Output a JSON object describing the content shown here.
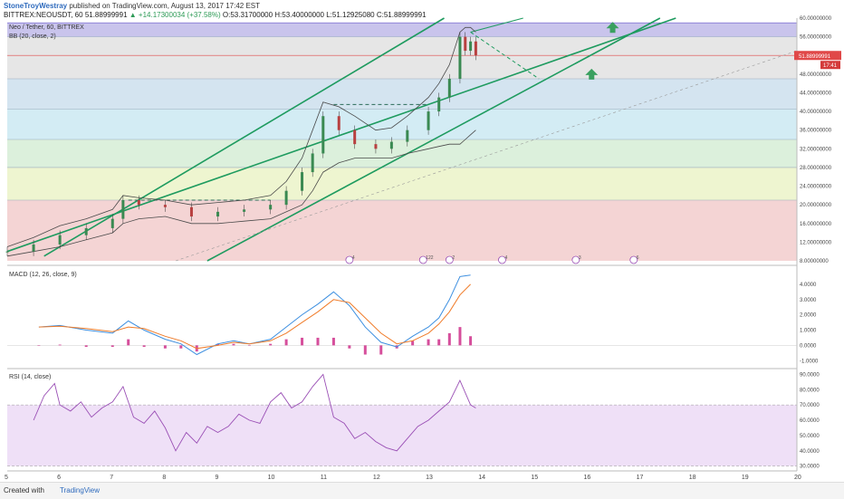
{
  "header": {
    "author": "StoneTroyWestray",
    "published": "published on TradingView.com, August 13, 2017 17:42 EST",
    "symbol": "BITTREX:NEOUSDT, 60",
    "last": "51.88999991",
    "change": "▲ +14.17300034 (+37.58%)",
    "ohlc": "O:53.31700000 H:53.40000000 L:51.12925080 C:51.88999991"
  },
  "footer": {
    "created": "Created with",
    "brand": "TradingView"
  },
  "colors": {
    "channel": "#1e9b5f",
    "bb": "#4a4a4a",
    "macd": "#3d8fe0",
    "signal": "#f07c2a",
    "hist": "#d64f9c",
    "rsi": "#9a4fb5",
    "arrow": "#3aa05f",
    "price_badge": "#e04848"
  },
  "chart_data": [
    {
      "type": "line",
      "title": "Neo / Tether, 60, BITTREX",
      "indicator": "BB (20, close, 2)",
      "x_tick_labels": [
        "5",
        "6",
        "7",
        "8",
        "9",
        "10",
        "11",
        "12",
        "13",
        "14",
        "15",
        "16",
        "17",
        "18",
        "19",
        "20"
      ],
      "y_tick_labels": [
        "60.00000000",
        "56.00000000",
        "52.00000000",
        "48.00000000",
        "44.00000000",
        "40.00000000",
        "36.00000000",
        "32.00000000",
        "28.00000000",
        "24.00000000",
        "20.00000000",
        "16.00000000",
        "12.00000000",
        "8.00000000"
      ],
      "ylim": [
        8,
        60
      ],
      "price_label": "51.88999991",
      "time_label": "17:41",
      "x": [
        5,
        5.5,
        6,
        6.5,
        7,
        7.2,
        7.5,
        8,
        8.5,
        9,
        9.5,
        10,
        10.3,
        10.6,
        10.8,
        11,
        11.3,
        11.6,
        12,
        12.3,
        12.6,
        13,
        13.2,
        13.4,
        13.6,
        13.7,
        13.8,
        13.9
      ],
      "close": [
        10,
        11.5,
        13.5,
        15,
        17,
        21,
        20,
        19.5,
        17.5,
        18.5,
        19,
        20,
        23,
        27,
        31,
        39,
        36,
        33,
        32,
        33.5,
        36,
        40,
        43,
        47,
        56,
        53,
        55,
        52
      ],
      "bb_upper": [
        11,
        13,
        15.5,
        17,
        19,
        22,
        21.5,
        21,
        20,
        20.5,
        21,
        22,
        25,
        30,
        36,
        42,
        41,
        39,
        36,
        36.5,
        39,
        43,
        46,
        50,
        57,
        58,
        58,
        57
      ],
      "bb_lower": [
        9,
        10,
        11,
        12.5,
        14,
        16,
        17,
        17.5,
        16,
        16,
        16.5,
        17,
        18.5,
        20,
        23,
        27,
        29,
        30,
        30,
        30,
        31,
        32,
        32.5,
        33,
        33,
        34,
        35,
        36
      ],
      "fib_levels": [
        {
          "y": 59
        },
        {
          "y": 56
        },
        {
          "y": 47
        },
        {
          "y": 40.5
        },
        {
          "y": 34
        },
        {
          "y": 28
        },
        {
          "y": 21
        }
      ],
      "annotations": [
        "resistance 41.5 (11.2–13.0)",
        "resistance 21 (7.3–10)",
        "upward channel",
        "projection arrows"
      ]
    },
    {
      "type": "line",
      "title": "MACD (12, 26, close, 9)",
      "y_tick_labels": [
        "4.0000",
        "3.0000",
        "2.0000",
        "1.0000",
        "0.0000",
        "-1.0000"
      ],
      "ylim": [
        -1.4,
        5
      ],
      "x": [
        5.6,
        6,
        6.5,
        7,
        7.3,
        7.6,
        8,
        8.3,
        8.6,
        9,
        9.3,
        9.6,
        10,
        10.3,
        10.6,
        10.9,
        11.2,
        11.5,
        11.8,
        12.1,
        12.4,
        12.7,
        13,
        13.2,
        13.4,
        13.6,
        13.8
      ],
      "series": [
        {
          "name": "MACD",
          "values": [
            1.2,
            1.3,
            1.0,
            0.8,
            1.6,
            1.0,
            0.4,
            0.1,
            -0.6,
            0.1,
            0.3,
            0.1,
            0.4,
            1.2,
            2.0,
            2.7,
            3.5,
            2.6,
            1.2,
            0.2,
            -0.1,
            0.6,
            1.2,
            1.8,
            3.0,
            4.5,
            4.6
          ]
        },
        {
          "name": "Signal",
          "values": [
            1.2,
            1.25,
            1.1,
            0.9,
            1.2,
            1.1,
            0.6,
            0.3,
            -0.2,
            0.0,
            0.2,
            0.1,
            0.3,
            0.8,
            1.5,
            2.2,
            3.0,
            2.8,
            1.8,
            0.8,
            0.1,
            0.3,
            0.8,
            1.4,
            2.2,
            3.3,
            4.0
          ]
        },
        {
          "name": "Histogram",
          "values": [
            0,
            0.05,
            -0.1,
            -0.1,
            0.4,
            -0.1,
            -0.2,
            -0.2,
            -0.4,
            0.1,
            0.1,
            0,
            0.1,
            0.4,
            0.5,
            0.5,
            0.5,
            -0.2,
            -0.6,
            -0.6,
            -0.2,
            0.3,
            0.4,
            0.4,
            0.8,
            1.2,
            0.6
          ]
        }
      ]
    },
    {
      "type": "line",
      "title": "RSI (14, close)",
      "y_tick_labels": [
        "90.0000",
        "80.0000",
        "70.0000",
        "60.0000",
        "50.0000",
        "40.0000",
        "30.0000"
      ],
      "ylim": [
        28,
        92
      ],
      "band": [
        30,
        70
      ],
      "x": [
        5.5,
        5.7,
        5.9,
        6.0,
        6.2,
        6.4,
        6.6,
        6.8,
        7.0,
        7.2,
        7.4,
        7.6,
        7.8,
        8.0,
        8.2,
        8.4,
        8.6,
        8.8,
        9.0,
        9.2,
        9.4,
        9.6,
        9.8,
        10.0,
        10.2,
        10.4,
        10.6,
        10.8,
        11.0,
        11.2,
        11.4,
        11.6,
        11.8,
        12.0,
        12.2,
        12.4,
        12.6,
        12.8,
        13.0,
        13.2,
        13.4,
        13.6,
        13.8,
        13.9
      ],
      "values": [
        60,
        76,
        84,
        70,
        66,
        72,
        62,
        68,
        72,
        82,
        62,
        58,
        66,
        55,
        40,
        52,
        45,
        56,
        52,
        56,
        64,
        60,
        58,
        72,
        78,
        68,
        72,
        82,
        90,
        62,
        58,
        48,
        52,
        46,
        42,
        40,
        48,
        56,
        60,
        66,
        72,
        86,
        70,
        68
      ]
    }
  ]
}
